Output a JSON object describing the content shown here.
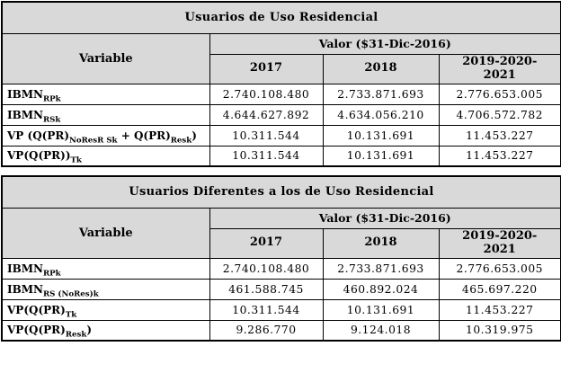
{
  "page": {
    "background": "#ffffff",
    "border_color": "#000000",
    "header_bg": "#d9d9d9",
    "text_color": "#000000"
  },
  "tables": [
    {
      "title": "Usuarios de Uso Residencial",
      "header": {
        "variable": "Variable",
        "valor": "Valor ($31-Dic-2016)",
        "years": [
          "2017",
          "2018",
          "2019-2020-\n2021"
        ]
      },
      "rows": [
        {
          "label": [
            {
              "t": "IBMN"
            },
            {
              "t": "RPk",
              "sub": true
            }
          ],
          "values": [
            "2.740.108.480",
            "2.733.871.693",
            "2.776.653.005"
          ]
        },
        {
          "label": [
            {
              "t": "IBMN"
            },
            {
              "t": "RSk",
              "sub": true
            }
          ],
          "values": [
            "4.644.627.892",
            "4.634.056.210",
            "4.706.572.782"
          ]
        },
        {
          "label": [
            {
              "t": "VP (Q(PR)"
            },
            {
              "t": "NoResR Sk",
              "sub": true
            },
            {
              "t": " + Q(PR)"
            },
            {
              "t": "Resk",
              "sub": true
            },
            {
              "t": ")"
            }
          ],
          "values": [
            "10.311.544",
            "10.131.691",
            "11.453.227"
          ]
        },
        {
          "label": [
            {
              "t": "VP(Q(PR))"
            },
            {
              "t": "Tk",
              "sub": true
            }
          ],
          "values": [
            "10.311.544",
            "10.131.691",
            "11.453.227"
          ]
        }
      ]
    },
    {
      "title": "Usuarios Diferentes a los de Uso Residencial",
      "header": {
        "variable": "Variable",
        "valor": "Valor ($31-Dic-2016)",
        "years": [
          "2017",
          "2018",
          "2019-2020-\n2021"
        ]
      },
      "rows": [
        {
          "label": [
            {
              "t": "IBMN"
            },
            {
              "t": "RPk",
              "sub": true
            }
          ],
          "values": [
            "2.740.108.480",
            "2.733.871.693",
            "2.776.653.005"
          ]
        },
        {
          "label": [
            {
              "t": "IBMN"
            },
            {
              "t": "RS (NoRes)k",
              "sub": true
            }
          ],
          "values": [
            "461.588.745",
            "460.892.024",
            "465.697.220"
          ]
        },
        {
          "label": [
            {
              "t": "VP(Q(PR)"
            },
            {
              "t": "Tk",
              "sub": true
            }
          ],
          "values": [
            "10.311.544",
            "10.131.691",
            "11.453.227"
          ]
        },
        {
          "label": [
            {
              "t": "VP(Q(PR)"
            },
            {
              "t": "Resk",
              "sub": true
            },
            {
              "t": ")"
            }
          ],
          "values": [
            "9.286.770",
            "9.124.018",
            "10.319.975"
          ]
        }
      ]
    }
  ]
}
